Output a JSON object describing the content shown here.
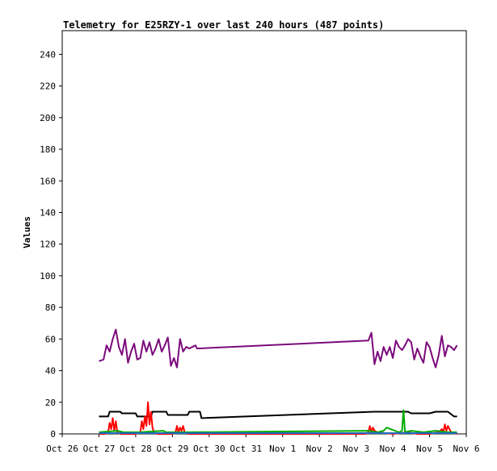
{
  "chart_data": {
    "type": "line",
    "title": "Telemetry for E25RZY-1 over last 240 hours (487 points)",
    "ylabel": "Values",
    "xlabel": "",
    "ylim": [
      0,
      255
    ],
    "xlim": [
      "2024-10-26T00:00",
      "2024-11-06T00:00"
    ],
    "x_tick_labels": [
      "Oct 26",
      "Oct 27",
      "Oct 28",
      "Oct 29",
      "Oct 30",
      "Oct 31",
      "Nov 1",
      "Nov 2",
      "Nov 3",
      "Nov 4",
      "Nov 5",
      "Nov 6"
    ],
    "y_ticks": [
      0,
      20,
      40,
      60,
      80,
      100,
      120,
      140,
      160,
      180,
      200,
      220,
      240
    ],
    "grid": false,
    "legend": "none",
    "series": [
      {
        "color": "#7b0a7b",
        "x": [
          "2024-10-27T00:00",
          "2024-10-27T03:00",
          "2024-10-27T05:00",
          "2024-10-27T07:00",
          "2024-10-27T09:00",
          "2024-10-27T11:00",
          "2024-10-27T13:00",
          "2024-10-27T15:00",
          "2024-10-27T17:00",
          "2024-10-27T19:00",
          "2024-10-27T21:00",
          "2024-10-27T23:00",
          "2024-10-28T01:00",
          "2024-10-28T03:00",
          "2024-10-28T05:00",
          "2024-10-28T07:00",
          "2024-10-28T09:00",
          "2024-10-28T11:00",
          "2024-10-28T13:00",
          "2024-10-28T15:00",
          "2024-10-28T17:00",
          "2024-10-28T19:00",
          "2024-10-28T21:00",
          "2024-10-28T23:00",
          "2024-10-29T01:00",
          "2024-10-29T03:00",
          "2024-10-29T05:00",
          "2024-10-29T07:00",
          "2024-10-29T09:00",
          "2024-10-29T11:00",
          "2024-10-29T13:00",
          "2024-10-29T15:00",
          "2024-10-29T16:00",
          "2024-11-03T08:00",
          "2024-11-03T10:00",
          "2024-11-03T12:00",
          "2024-11-03T14:00",
          "2024-11-03T16:00",
          "2024-11-03T18:00",
          "2024-11-03T20:00",
          "2024-11-03T22:00",
          "2024-11-04T00:00",
          "2024-11-04T02:00",
          "2024-11-04T04:00",
          "2024-11-04T06:00",
          "2024-11-04T08:00",
          "2024-11-04T10:00",
          "2024-11-04T12:00",
          "2024-11-04T14:00",
          "2024-11-04T16:00",
          "2024-11-04T18:00",
          "2024-11-04T20:00",
          "2024-11-04T22:00",
          "2024-11-05T00:00",
          "2024-11-05T02:00",
          "2024-11-05T04:00",
          "2024-11-05T06:00",
          "2024-11-05T08:00",
          "2024-11-05T10:00",
          "2024-11-05T12:00",
          "2024-11-05T14:00",
          "2024-11-05T16:00",
          "2024-11-05T18:00"
        ],
        "y": [
          46,
          47,
          56,
          52,
          60,
          66,
          55,
          50,
          60,
          45,
          52,
          57,
          47,
          48,
          59,
          52,
          58,
          50,
          54,
          60,
          52,
          56,
          61,
          43,
          48,
          42,
          60,
          52,
          55,
          54,
          55,
          56,
          54,
          59,
          64,
          44,
          52,
          46,
          55,
          50,
          55,
          48,
          59,
          55,
          53,
          56,
          60,
          58,
          47,
          54,
          49,
          45,
          58,
          55,
          48,
          42,
          50,
          62,
          49,
          56,
          55,
          53,
          56
        ]
      },
      {
        "color": "#000000",
        "x": [
          "2024-10-27T00:00",
          "2024-10-27T06:00",
          "2024-10-27T07:00",
          "2024-10-27T14:00",
          "2024-10-27T15:00",
          "2024-10-28T00:00",
          "2024-10-28T01:00",
          "2024-10-28T10:00",
          "2024-10-28T11:00",
          "2024-10-28T20:00",
          "2024-10-28T21:00",
          "2024-10-29T10:00",
          "2024-10-29T11:00",
          "2024-10-29T18:00",
          "2024-10-29T19:00",
          "2024-11-03T12:00",
          "2024-11-04T08:00",
          "2024-11-04T10:00",
          "2024-11-04T12:00",
          "2024-11-05T00:00",
          "2024-11-05T04:00",
          "2024-11-05T12:00",
          "2024-11-05T16:00",
          "2024-11-05T18:00"
        ],
        "y": [
          11,
          11,
          14,
          14,
          13,
          13,
          11,
          11,
          14,
          14,
          12,
          12,
          14,
          14,
          10,
          14,
          14,
          14,
          13,
          13,
          14,
          14,
          11,
          11
        ]
      },
      {
        "color": "#ff0000",
        "x": [
          "2024-10-27T00:00",
          "2024-10-27T04:00",
          "2024-10-27T06:00",
          "2024-10-27T07:00",
          "2024-10-27T08:00",
          "2024-10-27T09:00",
          "2024-10-27T10:00",
          "2024-10-27T11:00",
          "2024-10-27T12:00",
          "2024-10-27T14:00",
          "2024-10-27T18:00",
          "2024-10-28T00:00",
          "2024-10-28T03:00",
          "2024-10-28T04:00",
          "2024-10-28T05:00",
          "2024-10-28T06:00",
          "2024-10-28T07:00",
          "2024-10-28T08:00",
          "2024-10-28T09:00",
          "2024-10-28T10:00",
          "2024-10-28T11:00",
          "2024-10-28T12:00",
          "2024-10-28T14:00",
          "2024-10-28T20:00",
          "2024-10-29T00:00",
          "2024-10-29T02:00",
          "2024-10-29T03:00",
          "2024-10-29T04:00",
          "2024-10-29T05:00",
          "2024-10-29T06:00",
          "2024-10-29T07:00",
          "2024-10-29T08:00",
          "2024-10-29T10:00",
          "2024-11-03T06:00",
          "2024-11-03T08:00",
          "2024-11-03T09:00",
          "2024-11-03T10:00",
          "2024-11-03T11:00",
          "2024-11-03T12:00",
          "2024-11-03T14:00",
          "2024-11-04T00:00",
          "2024-11-04T10:00",
          "2024-11-04T16:00",
          "2024-11-05T00:00",
          "2024-11-05T06:00",
          "2024-11-05T08:00",
          "2024-11-05T09:00",
          "2024-11-05T10:00",
          "2024-11-05T11:00",
          "2024-11-05T12:00",
          "2024-11-05T14:00",
          "2024-11-05T18:00"
        ],
        "y": [
          0,
          0,
          1,
          7,
          3,
          10,
          2,
          8,
          1,
          0,
          0,
          0,
          1,
          8,
          3,
          11,
          5,
          20,
          6,
          14,
          4,
          1,
          0,
          0,
          0,
          1,
          5,
          1,
          4,
          2,
          5,
          1,
          0,
          0,
          1,
          5,
          1,
          4,
          2,
          1,
          0,
          1,
          0,
          0,
          1,
          3,
          1,
          6,
          2,
          5,
          1,
          0
        ]
      },
      {
        "color": "#00aa00",
        "x": [
          "2024-10-27T00:00",
          "2024-10-27T12:00",
          "2024-10-27T16:00",
          "2024-10-28T02:00",
          "2024-10-28T18:00",
          "2024-10-28T20:00",
          "2024-10-29T06:00",
          "2024-10-29T10:00",
          "2024-11-03T08:00",
          "2024-11-03T14:00",
          "2024-11-03T18:00",
          "2024-11-03T20:00",
          "2024-11-04T04:00",
          "2024-11-04T06:00",
          "2024-11-04T07:00",
          "2024-11-04T08:00",
          "2024-11-04T12:00",
          "2024-11-04T20:00",
          "2024-11-05T04:00",
          "2024-11-05T12:00",
          "2024-11-05T18:00"
        ],
        "y": [
          1,
          2,
          1,
          1,
          2,
          1,
          1,
          1,
          2,
          1,
          2,
          4,
          1,
          2,
          15,
          1,
          2,
          1,
          2,
          1,
          1
        ]
      },
      {
        "color": "#1f6fbf",
        "x": [
          "2024-10-27T00:00",
          "2024-11-05T18:00"
        ],
        "y": [
          0.5,
          0.5
        ]
      }
    ]
  }
}
